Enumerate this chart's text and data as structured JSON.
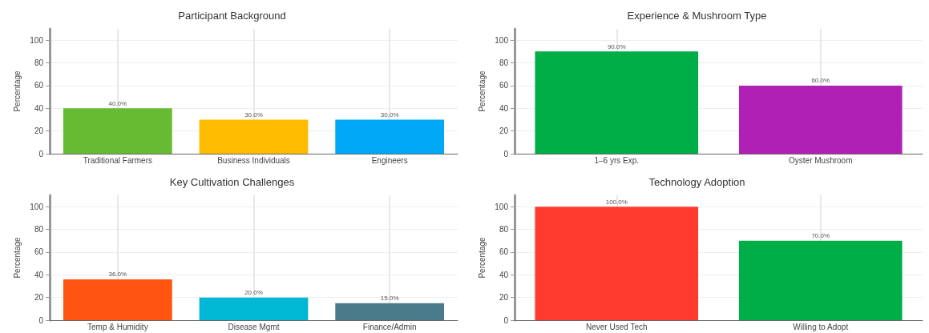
{
  "chart_data": [
    {
      "type": "bar",
      "title": "Participant Background",
      "ylabel": "Percentage",
      "categories": [
        "Traditional Farmers",
        "Business Individuals",
        "Engineers"
      ],
      "values": [
        40,
        30,
        30
      ],
      "colors": [
        "#66bb33",
        "#ffbb00",
        "#00a8f5"
      ],
      "value_labels": [
        "40.0%",
        "30.0%",
        "30.0%"
      ],
      "ylim": [
        0,
        110
      ],
      "yticks": [
        0,
        20,
        40,
        60,
        80,
        100
      ],
      "grid": true
    },
    {
      "type": "bar",
      "title": "Experience & Mushroom Type",
      "ylabel": "Percentage",
      "categories": [
        "1–6 yrs Exp.",
        "Oyster Mushroom"
      ],
      "values": [
        90,
        60
      ],
      "colors": [
        "#00ae48",
        "#b020b4"
      ],
      "value_labels": [
        "90.0%",
        "60.0%"
      ],
      "ylim": [
        0,
        110
      ],
      "yticks": [
        0,
        20,
        40,
        60,
        80,
        100
      ],
      "grid": true
    },
    {
      "type": "bar",
      "title": "Key Cultivation Challenges",
      "ylabel": "Percentage",
      "categories": [
        "Temp & Humidity",
        "Disease Mgmt",
        "Finance/Admin"
      ],
      "values": [
        36,
        20,
        15
      ],
      "colors": [
        "#ff5511",
        "#00b8d4",
        "#4a7b8a"
      ],
      "value_labels": [
        "36.0%",
        "20.0%",
        "15.0%"
      ],
      "ylim": [
        0,
        110
      ],
      "yticks": [
        0,
        20,
        40,
        60,
        80,
        100
      ],
      "grid": true
    },
    {
      "type": "bar",
      "title": "Technology Adoption",
      "ylabel": "Percentage",
      "categories": [
        "Never Used Tech",
        "Willing to Adopt"
      ],
      "values": [
        100,
        70
      ],
      "colors": [
        "#ff3b30",
        "#00ae48"
      ],
      "value_labels": [
        "100.0%",
        "70.0%"
      ],
      "ylim": [
        0,
        110
      ],
      "yticks": [
        0,
        20,
        40,
        60,
        80,
        100
      ],
      "grid": true
    }
  ]
}
